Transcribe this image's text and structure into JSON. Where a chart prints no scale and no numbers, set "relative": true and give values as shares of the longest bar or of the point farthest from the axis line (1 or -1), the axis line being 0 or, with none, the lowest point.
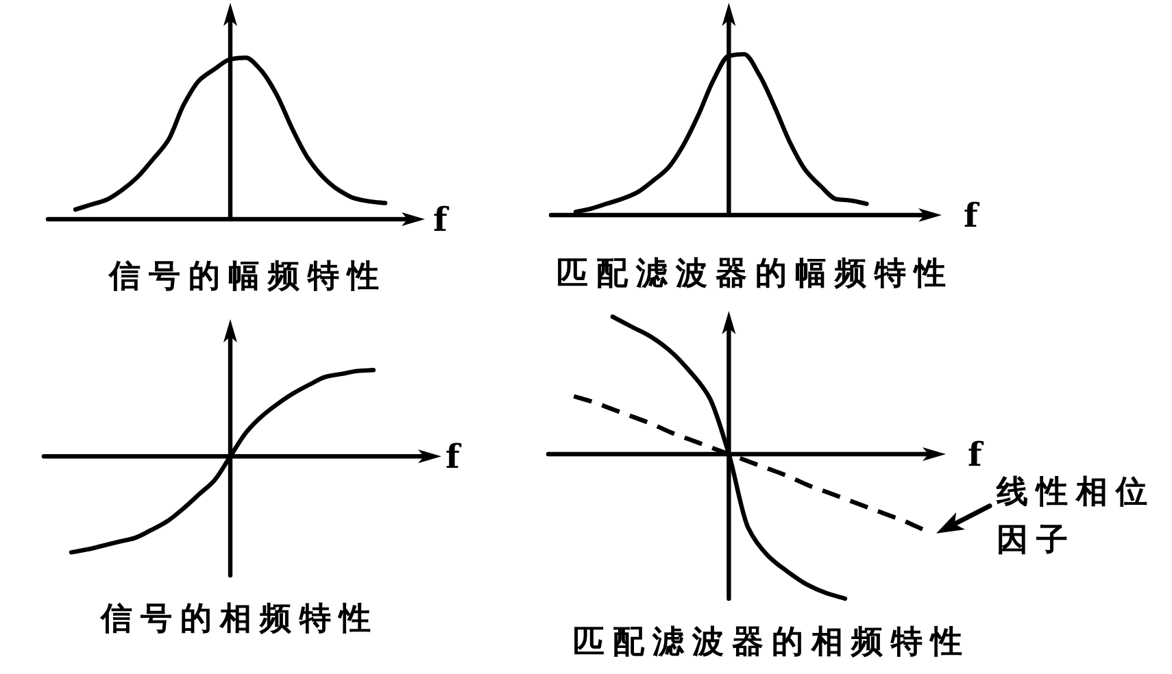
{
  "chart_data": [
    {
      "type": "line",
      "relative": true,
      "title": "信号的幅频特性",
      "xlabel": "f",
      "categories": [
        null,
        null,
        null,
        null,
        null,
        null,
        null,
        null,
        null,
        null,
        null,
        null,
        null,
        null,
        null,
        null,
        null,
        null,
        null,
        null,
        null
      ],
      "series": [
        {
          "color": "#000000",
          "values": [
            0.06,
            0.09,
            0.12,
            0.18,
            0.26,
            0.37,
            0.49,
            0.71,
            0.86,
            0.93,
            0.99,
            1.0,
            0.92,
            0.77,
            0.56,
            0.38,
            0.26,
            0.18,
            0.13,
            0.11,
            0.1
          ]
        }
      ]
    },
    {
      "type": "line",
      "relative": true,
      "title": "匹配滤波器的幅频特性",
      "xlabel": "f",
      "categories": [
        null,
        null,
        null,
        null,
        null,
        null,
        null,
        null,
        null,
        null,
        null,
        null,
        null,
        null,
        null,
        null,
        null,
        null,
        null,
        null,
        null
      ],
      "series": [
        {
          "color": "#000000",
          "values": [
            0.02,
            0.04,
            0.07,
            0.1,
            0.14,
            0.21,
            0.29,
            0.43,
            0.62,
            0.84,
            0.99,
            1.0,
            0.87,
            0.67,
            0.45,
            0.28,
            0.18,
            0.1,
            0.09,
            0.07,
            null
          ]
        }
      ]
    },
    {
      "type": "line",
      "relative": true,
      "title": "信号的相频特性",
      "xlabel": "f",
      "categories": [
        null,
        null,
        null,
        null,
        null,
        null,
        null,
        null,
        null,
        null,
        null,
        null,
        null,
        null,
        null,
        null,
        null,
        null,
        null,
        null,
        null
      ],
      "series": [
        {
          "color": "#000000",
          "values": [
            -1.0,
            -0.97,
            -0.93,
            -0.89,
            -0.85,
            -0.77,
            -0.68,
            -0.55,
            -0.4,
            -0.25,
            0,
            0.25,
            0.42,
            0.55,
            0.66,
            0.75,
            0.83,
            0.86,
            0.89,
            0.9,
            null
          ]
        }
      ]
    },
    {
      "type": "line",
      "relative": true,
      "title": "匹配滤波器的相频特性",
      "xlabel": "f",
      "categories": [
        null,
        null,
        null,
        null,
        null,
        null,
        null,
        null,
        null,
        null,
        null,
        null,
        null,
        null,
        null,
        null,
        null,
        null,
        null,
        null,
        null
      ],
      "series": [
        {
          "color": "#000000",
          "line_style": "solid",
          "values": [
            null,
            null,
            null,
            null,
            0.95,
            0.88,
            0.81,
            0.71,
            0.57,
            0.39,
            0,
            -0.51,
            -0.7,
            -0.81,
            -0.9,
            -0.96,
            -1.0,
            null,
            null,
            null,
            null
          ]
        },
        {
          "name": "线性相位因子",
          "color": "#000000",
          "line_style": "dashed",
          "values": [
            null,
            null,
            0.4,
            0.36,
            0.31,
            0.26,
            0.21,
            0.15,
            0.1,
            0.05,
            0,
            -0.05,
            -0.1,
            -0.15,
            -0.21,
            -0.26,
            -0.31,
            -0.36,
            -0.41,
            -0.46,
            -0.52
          ]
        }
      ]
    }
  ]
}
